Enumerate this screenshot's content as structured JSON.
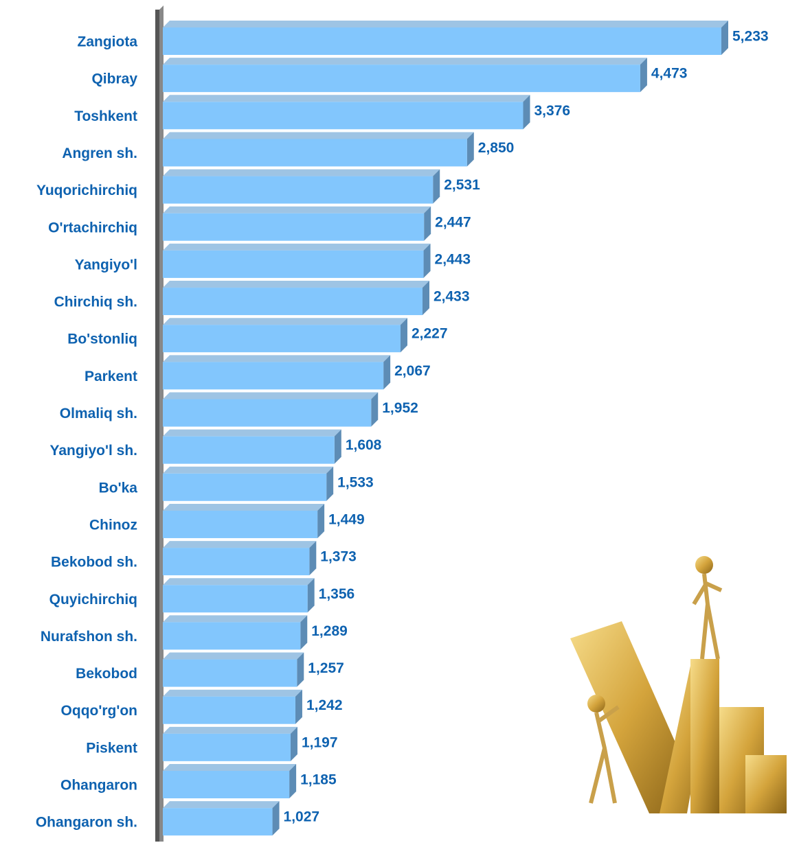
{
  "chart_data": {
    "type": "bar",
    "orientation": "horizontal",
    "categories": [
      "Zangiota",
      "Qibray",
      "Toshkent",
      "Angren sh.",
      "Yuqorichirchiq",
      "O'rtachirchiq",
      "Yangiyo'l",
      "Chirchiq sh.",
      "Bo'stonliq",
      "Parkent",
      "Olmaliq sh.",
      "Yangiyo'l sh.",
      "Bo'ka",
      "Chinoz",
      "Bekobod sh.",
      "Quyichirchiq",
      "Nurafshon sh.",
      "Bekobod",
      "Oqqo'rg'on",
      "Piskent",
      "Ohangaron",
      "Ohangaron sh."
    ],
    "values": [
      5233,
      4473,
      3376,
      2850,
      2531,
      2447,
      2443,
      2433,
      2227,
      2067,
      1952,
      1608,
      1533,
      1449,
      1373,
      1356,
      1289,
      1257,
      1242,
      1197,
      1185,
      1027
    ],
    "value_labels": [
      "5,233",
      "4,473",
      "3,376",
      "2,850",
      "2,531",
      "2,447",
      "2,443",
      "2,433",
      "2,227",
      "2,067",
      "1,952",
      "1,608",
      "1,533",
      "1,449",
      "1,373",
      "1,356",
      "1,289",
      "1,257",
      "1,242",
      "1,197",
      "1,185",
      "1,027"
    ],
    "color": "#82c6fd"
  }
}
